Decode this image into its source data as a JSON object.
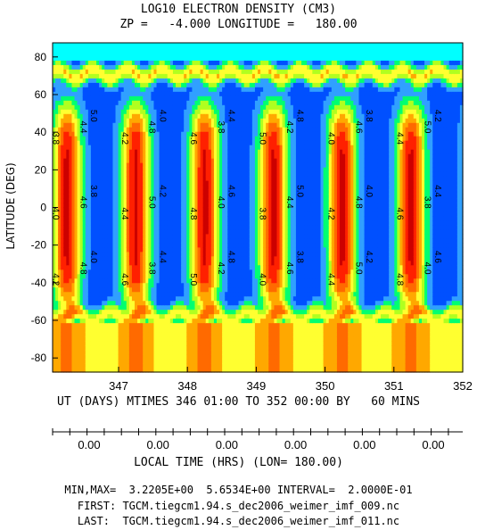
{
  "chart_data": {
    "type": "heatmap",
    "title": "LOG10 ELECTRON DENSITY (CM3)",
    "subtitle": "ZP =   -4.000 LONGITUDE =   180.00",
    "ylabel": "LATITUDE (DEG)",
    "xlabel": "UT (DAYS) MTIMES 346 01:00 TO 352 00:00 BY   60 MINS",
    "x_tick_labels": [
      "347",
      "348",
      "349",
      "350",
      "351",
      "352"
    ],
    "x_ticks": [
      347,
      348,
      349,
      350,
      351,
      352
    ],
    "xlim": [
      346.0417,
      352.0
    ],
    "y_tick_labels": [
      "80",
      "60",
      "40",
      "20",
      "0",
      "-20",
      "-40",
      "-60",
      "-80"
    ],
    "y_ticks": [
      80,
      60,
      40,
      20,
      0,
      -20,
      -40,
      -60,
      -80
    ],
    "ylim": [
      -87.5,
      87.5
    ],
    "local_time_axis": {
      "label": "LOCAL TIME (HRS) (LON= 180.00)",
      "tick_labels": [
        "0.00",
        "0.00",
        "0.00",
        "0.00",
        "0.00",
        "0.00"
      ]
    },
    "value_range": {
      "min": 3.2205,
      "max": 5.6534,
      "interval": 0.2
    },
    "contour_labels": [
      "3.8",
      "4.0",
      "4.2",
      "4.4",
      "4.6",
      "4.8",
      "5.0"
    ],
    "color_levels": [
      {
        "max_value": 3.6,
        "color": "#00ffff"
      },
      {
        "max_value": 3.8,
        "color": "#0050ff"
      },
      {
        "max_value": 4.0,
        "color": "#30a0ff"
      },
      {
        "max_value": 4.2,
        "color": "#00ff70"
      },
      {
        "max_value": 4.4,
        "color": "#b0ff20"
      },
      {
        "max_value": 4.6,
        "color": "#ffff30"
      },
      {
        "max_value": 4.8,
        "color": "#ffa800"
      },
      {
        "max_value": 5.0,
        "color": "#ff6a00"
      },
      {
        "max_value": 5.2,
        "color": "#ff2000"
      },
      {
        "max_value": 5.4,
        "color": "#cc0000"
      },
      {
        "max_value": 99,
        "color": "#ff3a8c"
      }
    ]
  },
  "footer": {
    "stats": "MIN,MAX=  3.2205E+00  5.6534E+00 INTERVAL=  2.0000E-01",
    "first": "FIRST: TGCM.tiegcm1.94.s_dec2006_weimer_imf_009.nc",
    "last": "LAST:  TGCM.tiegcm1.94.s_dec2006_weimer_imf_011.nc"
  }
}
